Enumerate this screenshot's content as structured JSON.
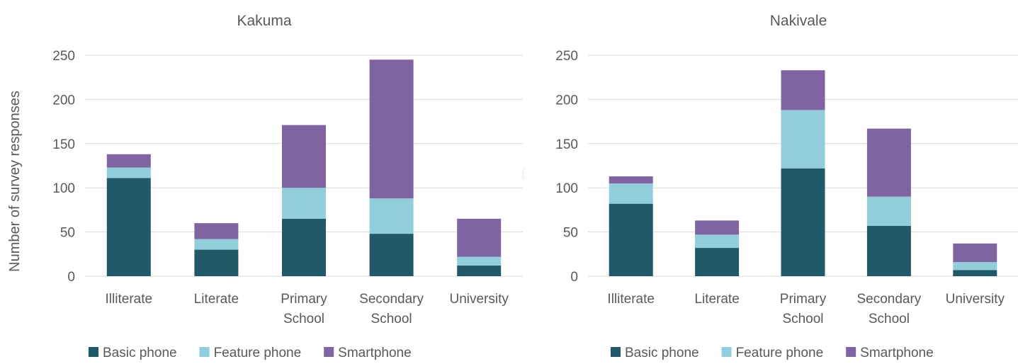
{
  "y_axis_title": "Number of survey responses",
  "stray_glyph": "f",
  "colors": {
    "basic": "#215968",
    "feature": "#92cddc",
    "smart": "#8064a2",
    "grid": "#d9d9d9",
    "text": "#595959"
  },
  "chart_data": [
    {
      "type": "bar",
      "stacked": true,
      "title": "Kakuma",
      "categories": [
        [
          "Illiterate"
        ],
        [
          "Literate"
        ],
        [
          "Primary",
          "School"
        ],
        [
          "Secondary",
          "School"
        ],
        [
          "University"
        ]
      ],
      "series": [
        {
          "name": "Basic phone",
          "color": "#215968",
          "values": [
            111,
            30,
            65,
            48,
            12
          ]
        },
        {
          "name": "Feature phone",
          "color": "#92cddc",
          "values": [
            12,
            12,
            35,
            40,
            10
          ]
        },
        {
          "name": "Smartphone",
          "color": "#8064a2",
          "values": [
            15,
            18,
            71,
            157,
            43
          ]
        }
      ],
      "ylabel": "Number of survey responses",
      "ylim": [
        0,
        250
      ],
      "yticks": [
        0,
        50,
        100,
        150,
        200,
        250
      ],
      "grid": true,
      "legend": "bottom"
    },
    {
      "type": "bar",
      "stacked": true,
      "title": "Nakivale",
      "categories": [
        [
          "Illiterate"
        ],
        [
          "Literate"
        ],
        [
          "Primary",
          "School"
        ],
        [
          "Secondary",
          "School"
        ],
        [
          "University"
        ]
      ],
      "series": [
        {
          "name": "Basic phone",
          "color": "#215968",
          "values": [
            82,
            32,
            122,
            57,
            7
          ]
        },
        {
          "name": "Feature phone",
          "color": "#92cddc",
          "values": [
            23,
            15,
            66,
            33,
            9
          ]
        },
        {
          "name": "Smartphone",
          "color": "#8064a2",
          "values": [
            8,
            16,
            45,
            77,
            21
          ]
        }
      ],
      "ylabel": "",
      "ylim": [
        0,
        250
      ],
      "yticks": [
        0,
        50,
        100,
        150,
        200,
        250
      ],
      "grid": true,
      "legend": "bottom"
    }
  ]
}
